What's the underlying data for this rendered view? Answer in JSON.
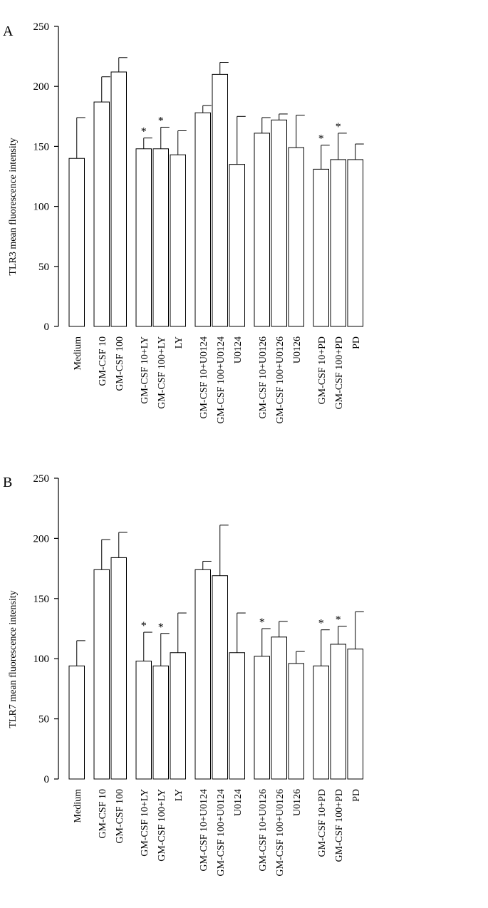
{
  "chart_data": [
    {
      "type": "bar",
      "panel_label": "A",
      "title": "",
      "xlabel": "",
      "ylabel": "TLR3 mean fluorescence intensity",
      "ylim": [
        0,
        250
      ],
      "yticks": [
        "0",
        "50",
        "100",
        "150",
        "200",
        "250"
      ],
      "categories": [
        "Medium",
        "GM-CSF 10",
        "GM-CSF 100",
        "GM-CSF 10+LY",
        "GM-CSF 100+LY",
        "LY",
        "GM-CSF 10+U0124",
        "GM-CSF 100+U0124",
        "U0124",
        "GM-CSF 10+U0126",
        "GM-CSF 100+U0126",
        "U0126",
        "GM-CSF 10+PD",
        "GM-CSF 100+PD",
        "PD"
      ],
      "groups": [
        [
          0
        ],
        [
          1,
          2
        ],
        [
          3,
          4,
          5
        ],
        [
          6,
          7,
          8
        ],
        [
          9,
          10,
          11
        ],
        [
          12,
          13,
          14
        ]
      ],
      "values": [
        140,
        187,
        212,
        148,
        148,
        143,
        178,
        210,
        135,
        161,
        172,
        149,
        131,
        139,
        139
      ],
      "errors": [
        34,
        21,
        12,
        9,
        18,
        20,
        6,
        10,
        40,
        13,
        5,
        27,
        20,
        22,
        13
      ],
      "significance_label": "*",
      "significant": [
        3,
        4,
        12,
        13
      ],
      "grid": false,
      "legend": "none"
    },
    {
      "type": "bar",
      "panel_label": "B",
      "title": "",
      "xlabel": "",
      "ylabel": "TLR7 mean fluorescence intensity",
      "ylim": [
        0,
        250
      ],
      "yticks": [
        "0",
        "50",
        "100",
        "150",
        "200",
        "250"
      ],
      "categories": [
        "Medium",
        "GM-CSF 10",
        "GM-CSF 100",
        "GM-CSF 10+LY",
        "GM-CSF 100+LY",
        "LY",
        "GM-CSF 10+U0124",
        "GM-CSF 100+U0124",
        "U0124",
        "GM-CSF 10+U0126",
        "GM-CSF 100+U0126",
        "U0126",
        "GM-CSF 10+PD",
        "GM-CSF 100+PD",
        "PD"
      ],
      "groups": [
        [
          0
        ],
        [
          1,
          2
        ],
        [
          3,
          4,
          5
        ],
        [
          6,
          7,
          8
        ],
        [
          9,
          10,
          11
        ],
        [
          12,
          13,
          14
        ]
      ],
      "values": [
        94,
        174,
        184,
        98,
        94,
        105,
        174,
        169,
        105,
        102,
        118,
        96,
        94,
        112,
        108
      ],
      "errors": [
        21,
        25,
        21,
        24,
        27,
        33,
        7,
        42,
        33,
        23,
        13,
        10,
        30,
        15,
        31
      ],
      "significance_label": "*",
      "significant": [
        3,
        4,
        9,
        12,
        13
      ],
      "grid": false,
      "legend": "none"
    }
  ]
}
